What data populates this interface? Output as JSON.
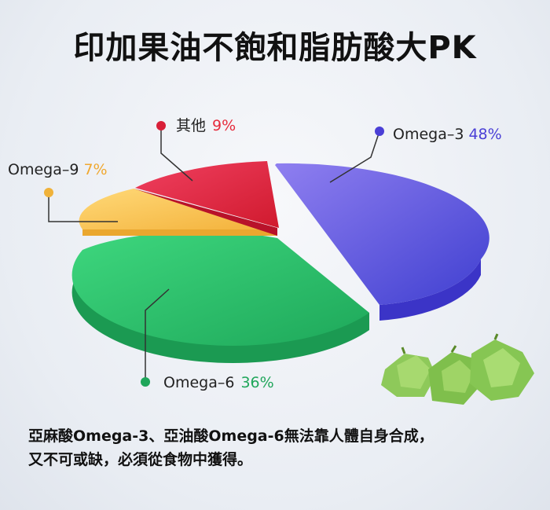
{
  "title": "印加果油不飽和脂肪酸大PK",
  "chart_data": {
    "type": "pie",
    "slices": [
      {
        "label": "Omega–3",
        "pct_label": "48%",
        "value": 48,
        "color": "#6461e0"
      },
      {
        "label": "Omega–6",
        "pct_label": "36%",
        "value": 36,
        "color": "#2fbf6d"
      },
      {
        "label": "Omega–9",
        "pct_label": "7%",
        "value": 7,
        "color": "#f7c452"
      },
      {
        "label": "其他",
        "pct_label": "9%",
        "value": 9,
        "color": "#e6273f"
      }
    ],
    "pct_color": "#e62b3c"
  },
  "caption": {
    "line1": "亞麻酸Omega-3、亞油酸Omega-6無法靠人體自身合成，",
    "line2": "又不可或缺，必須從食物中獲得。"
  }
}
